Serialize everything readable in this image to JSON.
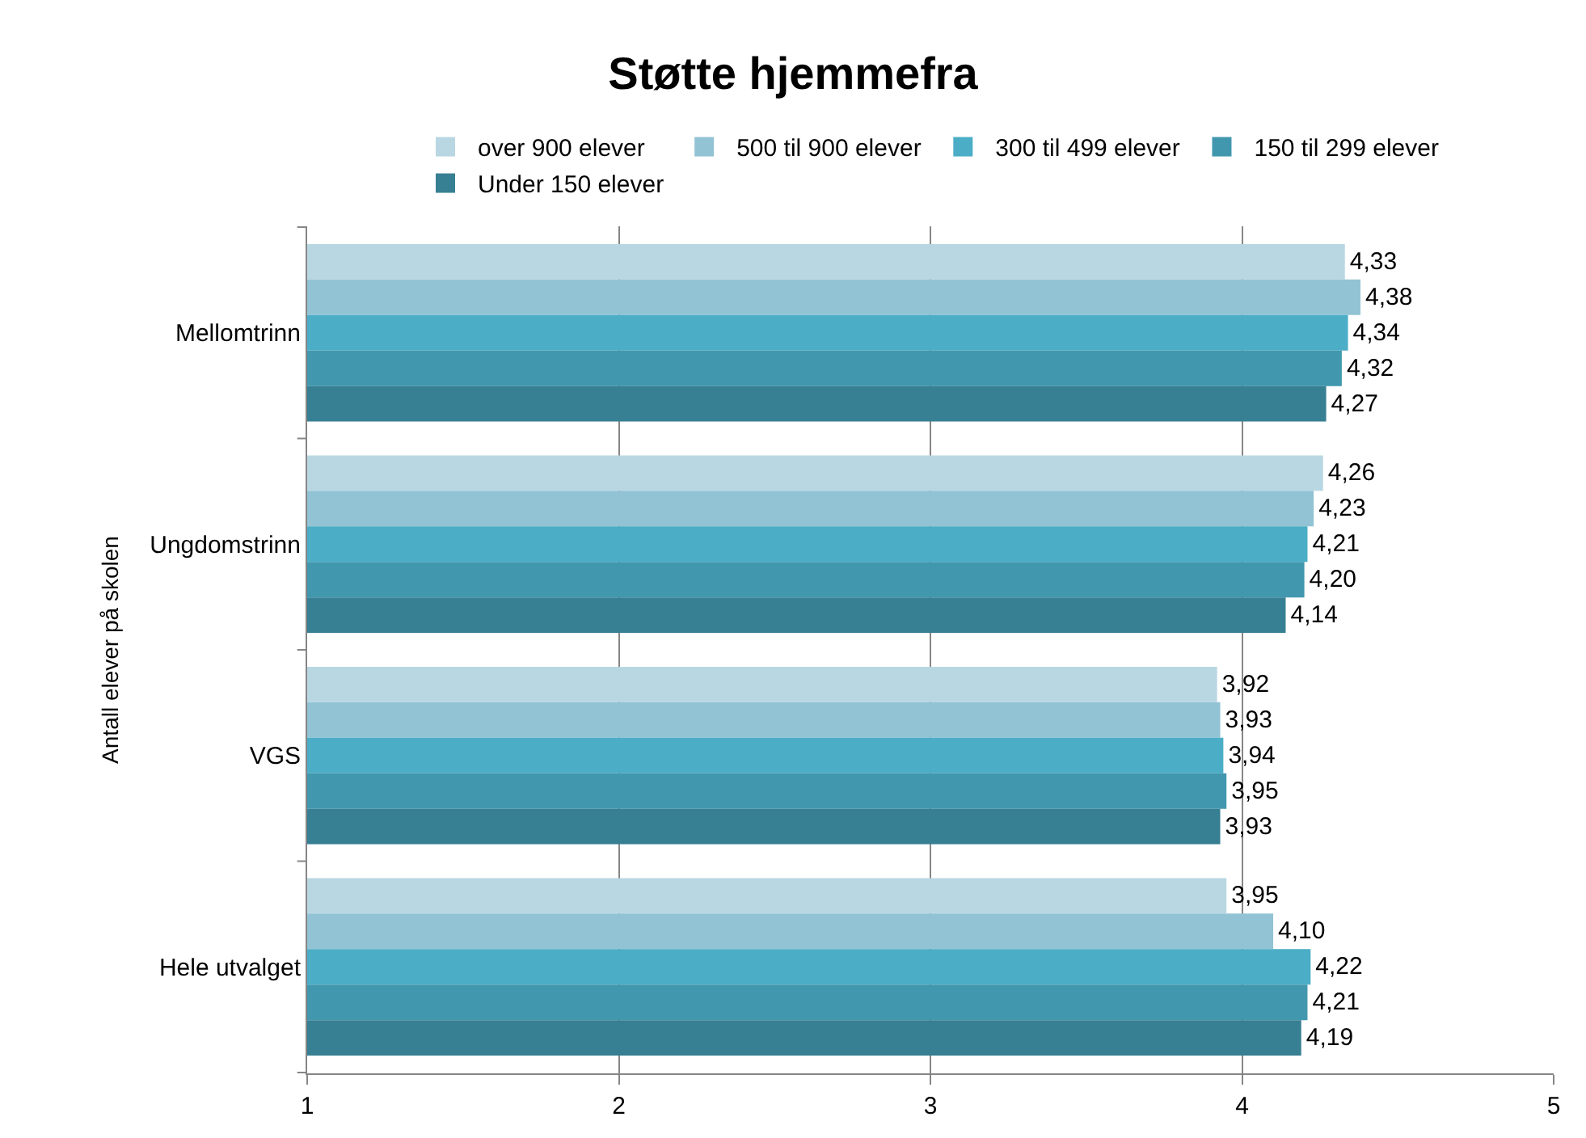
{
  "chart_data": {
    "type": "bar",
    "orientation": "horizontal",
    "title": "Støtte hjemmefra",
    "ylabel": "Antall elever på skolen",
    "categories": [
      "Mellomtrinn",
      "Ungdomstrinn",
      "VGS",
      "Hele utvalget"
    ],
    "series": [
      {
        "name": "over 900 elever",
        "color": "#b9d7e2",
        "values": [
          4.33,
          4.26,
          3.92,
          3.95
        ],
        "value_labels": [
          "4,33",
          "4,26",
          "3,92",
          "3,95"
        ]
      },
      {
        "name": "500 til 900 elever",
        "color": "#92c3d4",
        "values": [
          4.38,
          4.23,
          3.93,
          4.1
        ],
        "value_labels": [
          "4,38",
          "4,23",
          "3,93",
          "4,10"
        ]
      },
      {
        "name": "300 til 499 elever",
        "color": "#4badc6",
        "values": [
          4.34,
          4.21,
          3.94,
          4.22
        ],
        "value_labels": [
          "4,34",
          "4,21",
          "3,94",
          "4,22"
        ]
      },
      {
        "name": "150 til 299 elever",
        "color": "#4197ae",
        "values": [
          4.32,
          4.2,
          3.95,
          4.21
        ],
        "value_labels": [
          "4,32",
          "4,20",
          "3,95",
          "4,21"
        ]
      },
      {
        "name": "Under 150 elever",
        "color": "#377f93",
        "values": [
          4.27,
          4.14,
          3.93,
          4.19
        ],
        "value_labels": [
          "4,27",
          "4,14",
          "3,93",
          "4,19"
        ]
      }
    ],
    "xlim": [
      1,
      5
    ],
    "xticks": [
      1,
      2,
      3,
      4,
      5
    ],
    "grid": "x",
    "legend": "top"
  }
}
